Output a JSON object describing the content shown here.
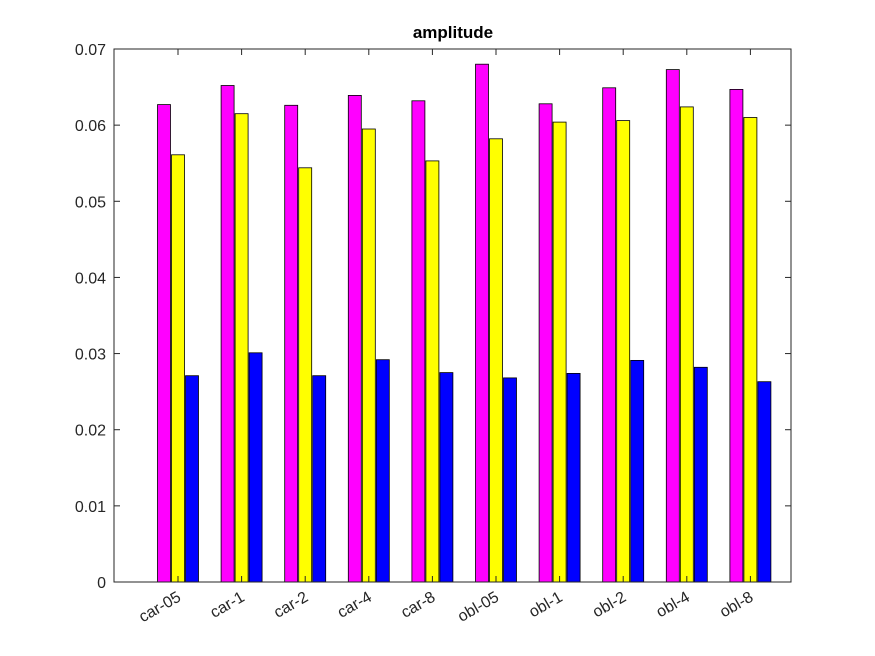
{
  "chart_data": {
    "type": "bar",
    "title": "amplitude",
    "xlabel": "",
    "ylabel": "",
    "categories": [
      "car-05",
      "car-1",
      "car-2",
      "car-4",
      "car-8",
      "obl-05",
      "obl-1",
      "obl-2",
      "obl-4",
      "obl-8"
    ],
    "series": [
      {
        "color": "#ff00ff",
        "values": [
          0.0627,
          0.0652,
          0.0626,
          0.0639,
          0.0632,
          0.068,
          0.0628,
          0.0649,
          0.0673,
          0.0647
        ]
      },
      {
        "color": "#ffff00",
        "values": [
          0.0561,
          0.0615,
          0.0544,
          0.0595,
          0.0553,
          0.0582,
          0.0604,
          0.0606,
          0.0624,
          0.061
        ]
      },
      {
        "color": "#0000ff",
        "values": [
          0.0271,
          0.0301,
          0.0271,
          0.0292,
          0.0275,
          0.0268,
          0.0274,
          0.0291,
          0.0282,
          0.0263
        ]
      }
    ],
    "ylim": [
      0,
      0.07
    ],
    "yticks": [
      "0",
      "0.01",
      "0.02",
      "0.03",
      "0.04",
      "0.05",
      "0.06",
      "0.07"
    ],
    "grid": false,
    "legend": "none"
  }
}
